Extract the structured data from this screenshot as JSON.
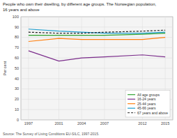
{
  "chart_data": {
    "type": "line",
    "title": "People who own their dwelling, by different age groups. The Norwegian population,",
    "subtitle": "16 years and above",
    "y_label": "Per cent",
    "annotations": [
      "Source: The Survey of Living Conditions EU-SILC, 1997-2015."
    ],
    "x": [
      1997,
      2001,
      2004,
      2007,
      2012,
      2015
    ],
    "xlim": [
      1996,
      2016
    ],
    "xticks": [
      1997,
      2001,
      2004,
      2007,
      2012,
      2015
    ],
    "ylim": [
      0,
      100
    ],
    "yticks": [
      0,
      10,
      20,
      30,
      40,
      50,
      60,
      70,
      80,
      90,
      100
    ],
    "grid": true,
    "legend": "lower right",
    "series": [
      {
        "name": "All age groups",
        "color": "#2ca02c",
        "line_style": "solid",
        "values": [
          82,
          82,
          82,
          82,
          83,
          84
        ]
      },
      {
        "name": "16-24 years",
        "color": "#7b2d8b",
        "line_style": "solid",
        "values": [
          67,
          57,
          60,
          61,
          63,
          61
        ]
      },
      {
        "name": "25-44 years",
        "color": "#ff7f0e",
        "line_style": "solid",
        "values": [
          76,
          79,
          78,
          78,
          78,
          80
        ]
      },
      {
        "name": "45-66 years",
        "color": "#1f9ece",
        "line_style": "solid",
        "values": [
          88,
          86,
          85,
          84,
          84,
          85
        ]
      },
      {
        "name": "67 years and above",
        "color": "#222222",
        "line_style": "dashed",
        "values": [
          85,
          84,
          84,
          85,
          86,
          87
        ]
      }
    ]
  }
}
